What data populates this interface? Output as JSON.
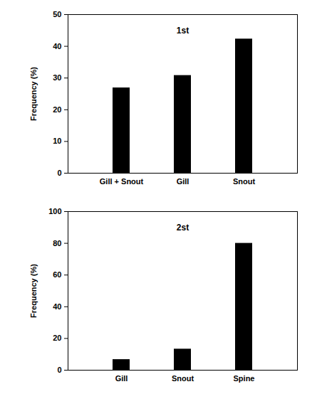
{
  "chart_data": [
    {
      "type": "bar",
      "title": "1st",
      "y_label": "Frequency (%)",
      "categories": [
        "Gill + Snout",
        "Gill",
        "Snout"
      ],
      "values": [
        26.9,
        30.8,
        42.3
      ],
      "color": "#000000",
      "ylim": [
        0,
        50
      ],
      "yticks": [
        0,
        10,
        20,
        30,
        40,
        50
      ],
      "grid": false
    },
    {
      "type": "bar",
      "title": "2st",
      "y_label": "Frequency (%)",
      "categories": [
        "Gill",
        "Snout",
        "Spine"
      ],
      "values": [
        6.7,
        13.3,
        80
      ],
      "color": "#000000",
      "ylim": [
        0,
        100
      ],
      "yticks": [
        0,
        20,
        40,
        60,
        80,
        100
      ],
      "grid": false
    }
  ]
}
